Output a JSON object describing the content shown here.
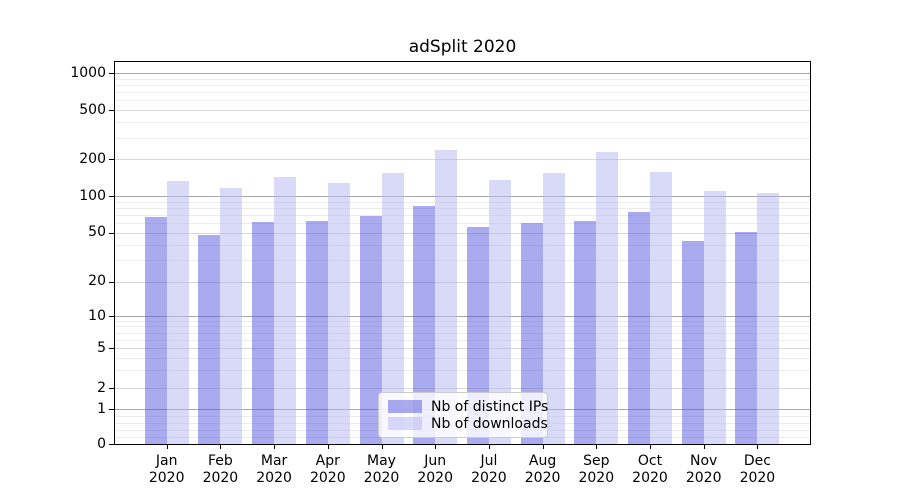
{
  "chart_data": {
    "type": "bar",
    "title": "adSplit 2020",
    "categories": [
      "Jan 2020",
      "Feb 2020",
      "Mar 2020",
      "Apr 2020",
      "May 2020",
      "Jun 2020",
      "Jul 2020",
      "Aug 2020",
      "Sep 2020",
      "Oct 2020",
      "Nov 2020",
      "Dec 2020"
    ],
    "series": [
      {
        "name": "Nb of distinct IPs",
        "color_hex_over_white": "#a9a9ef",
        "color_rgba": "rgba(85,85,224,0.5)",
        "values": [
          67,
          48,
          61,
          62,
          69,
          84,
          56,
          60,
          62,
          74,
          43,
          51
        ]
      },
      {
        "name": "Nb of downloads",
        "color_hex_over_white": "#d9d9f8",
        "color_rgba": "rgba(179,179,241,0.5)",
        "values": [
          133,
          116,
          144,
          128,
          154,
          236,
          135,
          154,
          228,
          158,
          111,
          107
        ]
      }
    ],
    "yscale": "symlog",
    "y_ticks": [
      0,
      1,
      2,
      5,
      10,
      20,
      50,
      100,
      200,
      500,
      1000
    ],
    "ylim": [
      0,
      1200
    ],
    "grid": true,
    "legend_position": "lower center"
  }
}
